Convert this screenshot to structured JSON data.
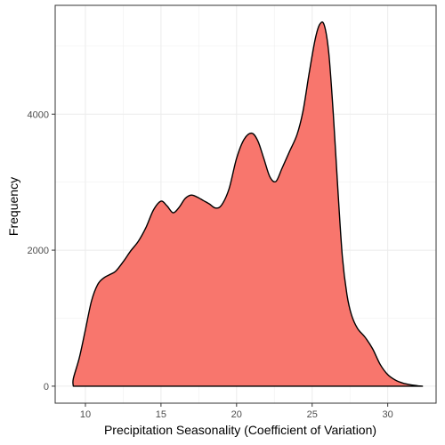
{
  "chart_data": {
    "type": "area",
    "title": "",
    "xlabel": "Precipitation Seasonality (Coefficient of Variation)",
    "ylabel": "Frequency",
    "xlim": [
      8.0,
      33.2
    ],
    "ylim": [
      -250,
      5600
    ],
    "x_ticks": [
      10,
      15,
      20,
      25,
      30
    ],
    "x_tick_labels": [
      "10",
      "15",
      "20",
      "25",
      "30"
    ],
    "y_ticks": [
      0,
      2000,
      4000
    ],
    "y_tick_labels": [
      "0",
      "2000",
      "4000"
    ],
    "grid": true,
    "legend": "none",
    "fill_color": "#F8766D",
    "line_color": "#000000",
    "series": [
      {
        "x": [
          9.2,
          9.2,
          9.6,
          10.0,
          10.4,
          10.8,
          11.2,
          11.6,
          12.0,
          12.5,
          13.0,
          13.5,
          14.0,
          14.5,
          15.0,
          15.4,
          15.8,
          16.2,
          16.6,
          17.0,
          17.4,
          17.8,
          18.2,
          18.6,
          19.0,
          19.5,
          20.0,
          20.5,
          21.0,
          21.4,
          21.8,
          22.2,
          22.6,
          23.0,
          23.5,
          24.0,
          24.4,
          24.8,
          25.2,
          25.5,
          25.8,
          26.1,
          26.4,
          26.7,
          27.0,
          27.3,
          27.6,
          28.0,
          28.5,
          29.0,
          29.5,
          30.0,
          30.5,
          31.0,
          31.5,
          32.0,
          32.3
        ],
        "y": [
          0,
          110,
          420,
          830,
          1250,
          1490,
          1590,
          1640,
          1690,
          1830,
          1990,
          2130,
          2330,
          2590,
          2720,
          2650,
          2550,
          2630,
          2760,
          2810,
          2780,
          2730,
          2680,
          2620,
          2660,
          2900,
          3350,
          3630,
          3720,
          3610,
          3350,
          3080,
          3010,
          3200,
          3450,
          3700,
          4050,
          4600,
          5100,
          5320,
          5310,
          4900,
          4000,
          2900,
          1900,
          1350,
          1050,
          850,
          720,
          550,
          320,
          170,
          90,
          45,
          20,
          5,
          0
        ]
      }
    ]
  }
}
